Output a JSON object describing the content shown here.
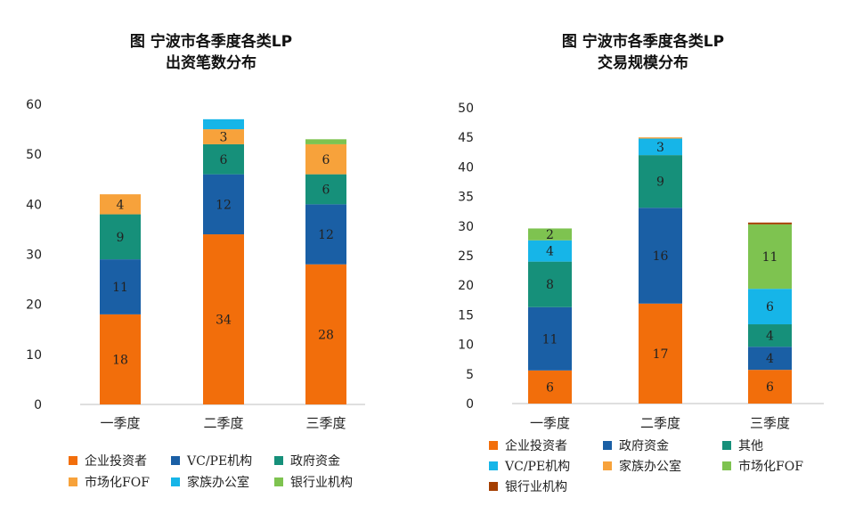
{
  "colors": {
    "企业投资者": "#F26E0B",
    "VC/PE机构": "#1A5FA5",
    "政府资金": "#16907A",
    "市场化FOF": "#F7A23B",
    "家族办公室": "#16B5E8",
    "银行业机构": "#7EC350",
    "其他": "#16907A",
    "银行业机构_right": "#A43E00"
  },
  "chart_data": [
    {
      "type": "bar",
      "stacked": true,
      "title": [
        "图  宁波市各季度各类LP",
        "出资笔数分布"
      ],
      "categories": [
        "一季度",
        "二季度",
        "三季度"
      ],
      "ylim": [
        0,
        60
      ],
      "yticks": [
        0,
        10,
        20,
        30,
        40,
        50,
        60
      ],
      "series": [
        {
          "name": "企业投资者",
          "color": "#F26E0B",
          "values": [
            18,
            34,
            28
          ],
          "labels": [
            "18",
            "34",
            "28"
          ]
        },
        {
          "name": "VC/PE机构",
          "color": "#1A5FA5",
          "values": [
            11,
            12,
            12
          ],
          "labels": [
            "11",
            "12",
            "12"
          ]
        },
        {
          "name": "政府资金",
          "color": "#16907A",
          "values": [
            9,
            6,
            6
          ],
          "labels": [
            "9",
            "6",
            "6"
          ]
        },
        {
          "name": "市场化FOF",
          "color": "#F7A23B",
          "values": [
            4,
            3,
            6
          ],
          "labels": [
            "4",
            "3",
            "6"
          ]
        },
        {
          "name": "家族办公室",
          "color": "#16B5E8",
          "values": [
            0,
            2,
            0
          ],
          "labels": [
            "",
            "",
            ""
          ]
        },
        {
          "name": "银行业机构",
          "color": "#7EC350",
          "values": [
            0,
            0,
            1
          ],
          "labels": [
            "",
            "",
            ""
          ]
        }
      ],
      "legend": [
        "企业投资者",
        "VC/PE机构",
        "政府资金",
        "市场化FOF",
        "家族办公室",
        "银行业机构"
      ]
    },
    {
      "type": "bar",
      "stacked": true,
      "title": [
        "图  宁波市各季度各类LP",
        "交易规模分布"
      ],
      "categories": [
        "一季度",
        "二季度",
        "三季度"
      ],
      "ylim": [
        0,
        50
      ],
      "yticks": [
        0,
        5,
        10,
        15,
        20,
        25,
        30,
        35,
        40,
        45,
        50
      ],
      "series": [
        {
          "name": "企业投资者",
          "color": "#F26E0B",
          "values": [
            5.6,
            16.9,
            5.7
          ],
          "labels": [
            "6",
            "17",
            "6"
          ]
        },
        {
          "name": "政府资金",
          "color": "#1A5FA5",
          "values": [
            10.7,
            16.2,
            3.9
          ],
          "labels": [
            "11",
            "16",
            "4"
          ]
        },
        {
          "name": "其他",
          "color": "#16907A",
          "values": [
            7.7,
            8.9,
            3.8
          ],
          "labels": [
            "8",
            "9",
            "4"
          ]
        },
        {
          "name": "VC/PE机构",
          "color": "#16B5E8",
          "values": [
            3.6,
            2.8,
            6.0
          ],
          "labels": [
            "4",
            "3",
            "6"
          ]
        },
        {
          "name": "家族办公室",
          "color": "#F7A23B",
          "values": [
            0,
            0.2,
            0
          ],
          "labels": [
            "",
            "",
            ""
          ]
        },
        {
          "name": "市场化FOF",
          "color": "#7EC350",
          "values": [
            2.0,
            0,
            10.9
          ],
          "labels": [
            "2",
            "",
            "11"
          ]
        },
        {
          "name": "银行业机构",
          "color": "#A43E00",
          "values": [
            0,
            0,
            0.3
          ],
          "labels": [
            "",
            "",
            ""
          ]
        }
      ],
      "legend": [
        "企业投资者",
        "政府资金",
        "其他",
        "VC/PE机构",
        "家族办公室",
        "市场化FOF",
        "银行业机构"
      ]
    }
  ]
}
